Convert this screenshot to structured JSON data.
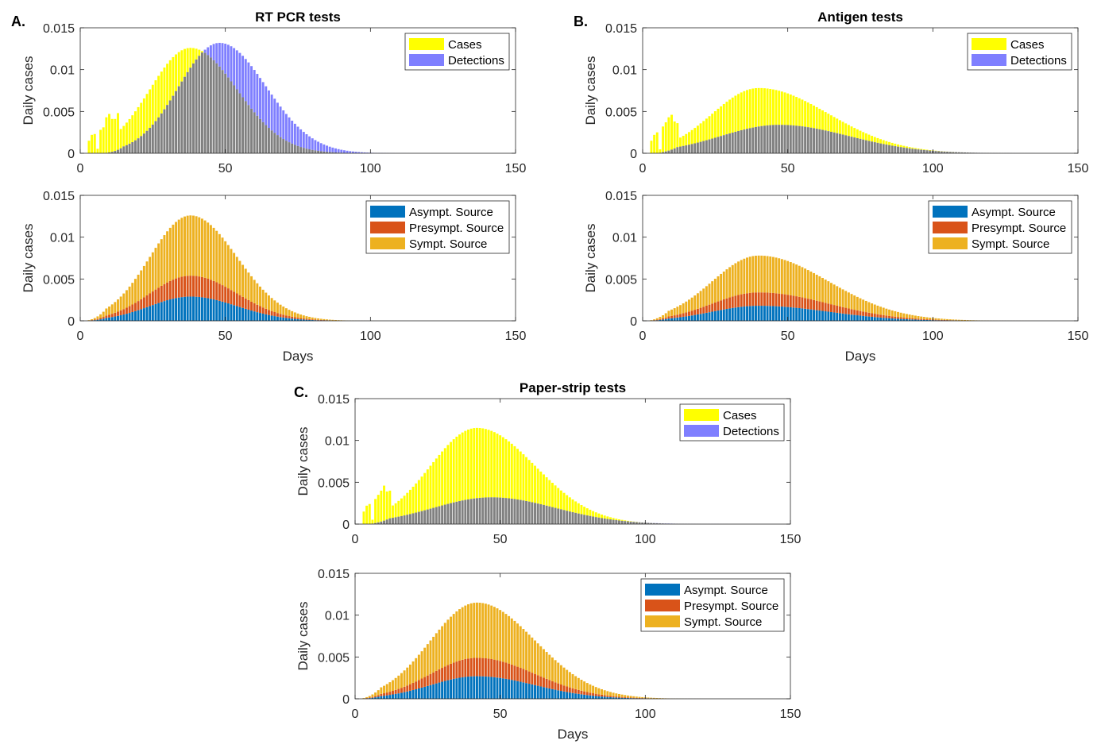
{
  "panel_labels": {
    "A": "A.",
    "B": "B.",
    "C": "C."
  },
  "colors": {
    "cases": "#ffff00",
    "detections": "#7f7fff",
    "overlap": "#808080",
    "asymptomatic": "#0072bd",
    "presymptomatic": "#d95319",
    "symptomatic": "#edb120"
  },
  "chart_data": [
    {
      "id": "A-top",
      "panel": "A",
      "type": "bar",
      "stacking": "overlay",
      "title": "RT PCR tests",
      "xlabel": "",
      "ylabel": "Daily cases",
      "xlim": [
        0,
        150
      ],
      "ylim": [
        0,
        0.015
      ],
      "xticks": [
        "0",
        "50",
        "100",
        "150"
      ],
      "yticks": [
        "0",
        "0.005",
        "0.01",
        "0.015"
      ],
      "legend": {
        "position": "top-right",
        "entries": [
          "Cases",
          "Detections"
        ]
      },
      "series": [
        {
          "name": "Cases",
          "model": {
            "start": 3,
            "peak_day": 38,
            "peak": 0.0126,
            "rise_width": 14,
            "fall_width": 16,
            "early_spikes": [
              [
                3,
                0.0015
              ],
              [
                4,
                0.0022
              ],
              [
                5,
                0.0023
              ],
              [
                7,
                0.0028
              ],
              [
                8,
                0.0031
              ],
              [
                9,
                0.0043
              ],
              [
                10,
                0.0047
              ],
              [
                11,
                0.0041
              ],
              [
                12,
                0.0041
              ],
              [
                13,
                0.0048
              ]
            ]
          }
        },
        {
          "name": "Detections",
          "model": {
            "start": 9,
            "peak_day": 48,
            "peak": 0.0132,
            "rise_width": 14,
            "fall_width": 16
          }
        }
      ]
    },
    {
      "id": "A-bottom",
      "panel": "A",
      "type": "bar",
      "stacking": "stacked",
      "title": "",
      "xlabel": "Days",
      "ylabel": "Daily cases",
      "xlim": [
        0,
        150
      ],
      "ylim": [
        0,
        0.015
      ],
      "xticks": [
        "0",
        "50",
        "100",
        "150"
      ],
      "yticks": [
        "0",
        "0.005",
        "0.01",
        "0.015"
      ],
      "legend": {
        "position": "top-right",
        "entries": [
          "Asympt. Source",
          "Presympt. Source",
          "Sympt. Source"
        ]
      },
      "series": [
        {
          "name": "Asympt. Source",
          "model": {
            "start": 3,
            "peak_day": 38,
            "peak": 0.0029,
            "rise_width": 14,
            "fall_width": 16
          }
        },
        {
          "name": "Presympt. Source",
          "model": {
            "start": 3,
            "peak_day": 38,
            "peak": 0.0025,
            "rise_width": 14,
            "fall_width": 16
          }
        },
        {
          "name": "Sympt. Source",
          "model": {
            "start": 3,
            "peak_day": 38,
            "peak": 0.0072,
            "rise_width": 14,
            "fall_width": 16
          }
        }
      ]
    },
    {
      "id": "B-top",
      "panel": "B",
      "type": "bar",
      "stacking": "overlay",
      "title": "Antigen tests",
      "xlabel": "",
      "ylabel": "Daily cases",
      "xlim": [
        0,
        150
      ],
      "ylim": [
        0,
        0.015
      ],
      "xticks": [
        "0",
        "50",
        "100",
        "150"
      ],
      "yticks": [
        "0",
        "0.005",
        "0.01",
        "0.015"
      ],
      "legend": {
        "position": "top-right",
        "entries": [
          "Cases",
          "Detections"
        ]
      },
      "series": [
        {
          "name": "Cases",
          "model": {
            "start": 3,
            "peak_day": 40,
            "peak": 0.0078,
            "rise_width": 16,
            "fall_width": 24,
            "early_spikes": [
              [
                3,
                0.0015
              ],
              [
                4,
                0.0022
              ],
              [
                5,
                0.0025
              ],
              [
                7,
                0.0032
              ],
              [
                8,
                0.0037
              ],
              [
                9,
                0.0043
              ],
              [
                10,
                0.0046
              ],
              [
                11,
                0.0038
              ],
              [
                12,
                0.0036
              ]
            ]
          }
        },
        {
          "name": "Detections",
          "model": {
            "start": 6,
            "peak_day": 47,
            "peak": 0.0034,
            "rise_width": 20,
            "fall_width": 24
          }
        }
      ]
    },
    {
      "id": "B-bottom",
      "panel": "B",
      "type": "bar",
      "stacking": "stacked",
      "title": "",
      "xlabel": "Days",
      "ylabel": "Daily cases",
      "xlim": [
        0,
        150
      ],
      "ylim": [
        0,
        0.015
      ],
      "xticks": [
        "0",
        "50",
        "100",
        "150"
      ],
      "yticks": [
        "0",
        "0.005",
        "0.01",
        "0.015"
      ],
      "legend": {
        "position": "top-right",
        "entries": [
          "Asympt. Source",
          "Presympt. Source",
          "Sympt. Source"
        ]
      },
      "series": [
        {
          "name": "Asympt. Source",
          "model": {
            "start": 3,
            "peak_day": 40,
            "peak": 0.0018,
            "rise_width": 16,
            "fall_width": 24
          }
        },
        {
          "name": "Presympt. Source",
          "model": {
            "start": 3,
            "peak_day": 40,
            "peak": 0.0016,
            "rise_width": 16,
            "fall_width": 24
          }
        },
        {
          "name": "Sympt. Source",
          "model": {
            "start": 3,
            "peak_day": 40,
            "peak": 0.0044,
            "rise_width": 16,
            "fall_width": 24
          }
        }
      ]
    },
    {
      "id": "C-top",
      "panel": "C",
      "type": "bar",
      "stacking": "overlay",
      "title": "Paper-strip tests",
      "xlabel": "",
      "ylabel": "Daily cases",
      "xlim": [
        0,
        150
      ],
      "ylim": [
        0,
        0.015
      ],
      "xticks": [
        "0",
        "50",
        "100",
        "150"
      ],
      "yticks": [
        "0",
        "0.005",
        "0.01",
        "0.015"
      ],
      "legend": {
        "position": "top-right",
        "entries": [
          "Cases",
          "Detections"
        ]
      },
      "series": [
        {
          "name": "Cases",
          "model": {
            "start": 3,
            "peak_day": 42,
            "peak": 0.0115,
            "rise_width": 16,
            "fall_width": 20,
            "early_spikes": [
              [
                3,
                0.0015
              ],
              [
                4,
                0.0022
              ],
              [
                5,
                0.0024
              ],
              [
                7,
                0.003
              ],
              [
                8,
                0.0035
              ],
              [
                9,
                0.004
              ],
              [
                10,
                0.0046
              ],
              [
                11,
                0.0039
              ],
              [
                12,
                0.004
              ]
            ]
          }
        },
        {
          "name": "Detections",
          "model": {
            "start": 6,
            "peak_day": 47,
            "peak": 0.0032,
            "rise_width": 20,
            "fall_width": 22
          }
        }
      ]
    },
    {
      "id": "C-bottom",
      "panel": "C",
      "type": "bar",
      "stacking": "stacked",
      "title": "",
      "xlabel": "Days",
      "ylabel": "Daily cases",
      "xlim": [
        0,
        150
      ],
      "ylim": [
        0,
        0.015
      ],
      "xticks": [
        "0",
        "50",
        "100",
        "150"
      ],
      "yticks": [
        "0",
        "0.005",
        "0.01",
        "0.015"
      ],
      "legend": {
        "position": "top-right",
        "entries": [
          "Asympt. Source",
          "Presympt. Source",
          "Sympt. Source"
        ]
      },
      "series": [
        {
          "name": "Asympt. Source",
          "model": {
            "start": 3,
            "peak_day": 42,
            "peak": 0.0027,
            "rise_width": 16,
            "fall_width": 20
          }
        },
        {
          "name": "Presympt. Source",
          "model": {
            "start": 3,
            "peak_day": 42,
            "peak": 0.0022,
            "rise_width": 16,
            "fall_width": 20
          }
        },
        {
          "name": "Sympt. Source",
          "model": {
            "start": 3,
            "peak_day": 42,
            "peak": 0.0066,
            "rise_width": 16,
            "fall_width": 20
          }
        }
      ]
    }
  ]
}
